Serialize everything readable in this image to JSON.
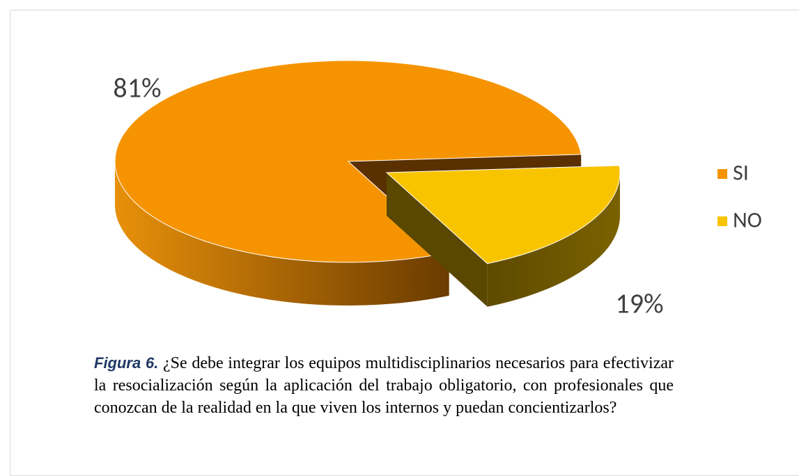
{
  "chart_data": {
    "type": "pie",
    "categories": [
      "SI",
      "NO"
    ],
    "values": [
      81,
      19
    ],
    "value_labels": [
      "81%",
      "19%"
    ],
    "colors": [
      "#f59400",
      "#f8c400"
    ],
    "legend": "right",
    "caption_label": "Figura 6.",
    "caption": "¿Se debe integrar los equipos multidisciplinarios necesarios para efectivizar la resocialización según la aplicación del trabajo obligatorio, con profesionales que conozcan de la realidad en la que viven los internos y puedan concientizarlos?"
  }
}
